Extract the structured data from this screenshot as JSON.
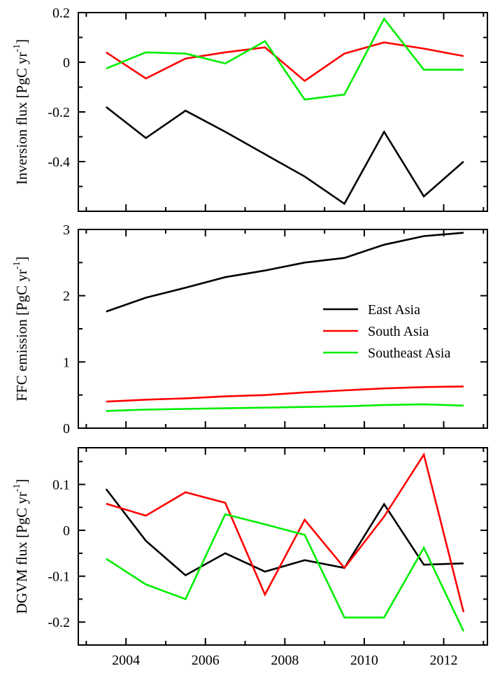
{
  "chart_data": [
    {
      "type": "line",
      "id": "inversion",
      "ylabel": "Inversion flux [PgC yr",
      "ylabel_sup": "-1",
      "ylabel_tail": "]",
      "x": [
        2003.5,
        2004.5,
        2005.5,
        2006.5,
        2007.5,
        2008.5,
        2009.5,
        2010.5,
        2011.5,
        2012.5
      ],
      "xlim": [
        2002.8,
        2013.1
      ],
      "ylim": [
        -0.6,
        0.2
      ],
      "yticks": [
        -0.4,
        -0.2,
        0,
        0.2
      ],
      "ytick_labels": [
        "-0.4",
        "-0.2",
        "0",
        "0.2"
      ],
      "series": [
        {
          "name": "East Asia",
          "color": "#000000",
          "values": [
            -0.18,
            -0.305,
            -0.195,
            -0.28,
            -0.37,
            -0.46,
            -0.57,
            -0.28,
            -0.54,
            -0.4
          ]
        },
        {
          "name": "South Asia",
          "color": "#ff0000",
          "values": [
            0.04,
            -0.065,
            0.015,
            0.04,
            0.06,
            -0.075,
            0.035,
            0.08,
            0.055,
            0.025
          ]
        },
        {
          "name": "Southeast Asia",
          "color": "#00ee00",
          "values": [
            -0.025,
            0.04,
            0.035,
            -0.005,
            0.085,
            -0.15,
            -0.13,
            0.175,
            -0.03,
            -0.03
          ]
        }
      ]
    },
    {
      "type": "line",
      "id": "ffc",
      "ylabel": "FFC emission [PgC yr",
      "ylabel_sup": "-1",
      "ylabel_tail": "]",
      "x": [
        2003.5,
        2004.5,
        2005.5,
        2006.5,
        2007.5,
        2008.5,
        2009.5,
        2010.5,
        2011.5,
        2012.5
      ],
      "xlim": [
        2002.8,
        2013.1
      ],
      "ylim": [
        0,
        3
      ],
      "yticks": [
        0,
        1,
        2,
        3
      ],
      "ytick_labels": [
        "0",
        "1",
        "2",
        "3"
      ],
      "legend": {
        "position": "center-right",
        "entries": [
          "East Asia",
          "South Asia",
          "Southeast Asia"
        ]
      },
      "series": [
        {
          "name": "East Asia",
          "color": "#000000",
          "values": [
            1.76,
            1.97,
            2.12,
            2.28,
            2.38,
            2.5,
            2.57,
            2.77,
            2.9,
            2.95
          ]
        },
        {
          "name": "South Asia",
          "color": "#ff0000",
          "values": [
            0.4,
            0.43,
            0.45,
            0.48,
            0.5,
            0.54,
            0.57,
            0.6,
            0.62,
            0.63
          ]
        },
        {
          "name": "Southeast Asia",
          "color": "#00ee00",
          "values": [
            0.26,
            0.28,
            0.29,
            0.3,
            0.31,
            0.32,
            0.33,
            0.35,
            0.36,
            0.34
          ]
        }
      ]
    },
    {
      "type": "line",
      "id": "dgvm",
      "ylabel": "DGVM flux [PgC yr",
      "ylabel_sup": "-1",
      "ylabel_tail": "]",
      "x": [
        2003.5,
        2004.5,
        2005.5,
        2006.5,
        2007.5,
        2008.5,
        2009.5,
        2010.5,
        2011.5,
        2012.5
      ],
      "xlim": [
        2002.8,
        2013.1
      ],
      "ylim": [
        -0.25,
        0.18
      ],
      "yticks": [
        -0.2,
        -0.1,
        0,
        0.1
      ],
      "ytick_labels": [
        "-0.2",
        "-0.1",
        "0",
        "0.1"
      ],
      "xticks": [
        2004,
        2006,
        2008,
        2010,
        2012
      ],
      "xtick_labels": [
        "2004",
        "2006",
        "2008",
        "2010",
        "2012"
      ],
      "series": [
        {
          "name": "East Asia",
          "color": "#000000",
          "values": [
            0.09,
            -0.023,
            -0.098,
            -0.05,
            -0.09,
            -0.065,
            -0.082,
            0.057,
            -0.075,
            -0.072
          ]
        },
        {
          "name": "South Asia",
          "color": "#ff0000",
          "values": [
            0.058,
            0.032,
            0.083,
            0.06,
            -0.14,
            0.023,
            -0.082,
            0.03,
            0.165,
            -0.178
          ]
        },
        {
          "name": "Southeast Asia",
          "color": "#00ee00",
          "values": [
            -0.062,
            -0.118,
            -0.15,
            0.035,
            0.013,
            -0.01,
            -0.19,
            -0.19,
            -0.038,
            -0.22
          ]
        }
      ]
    }
  ]
}
